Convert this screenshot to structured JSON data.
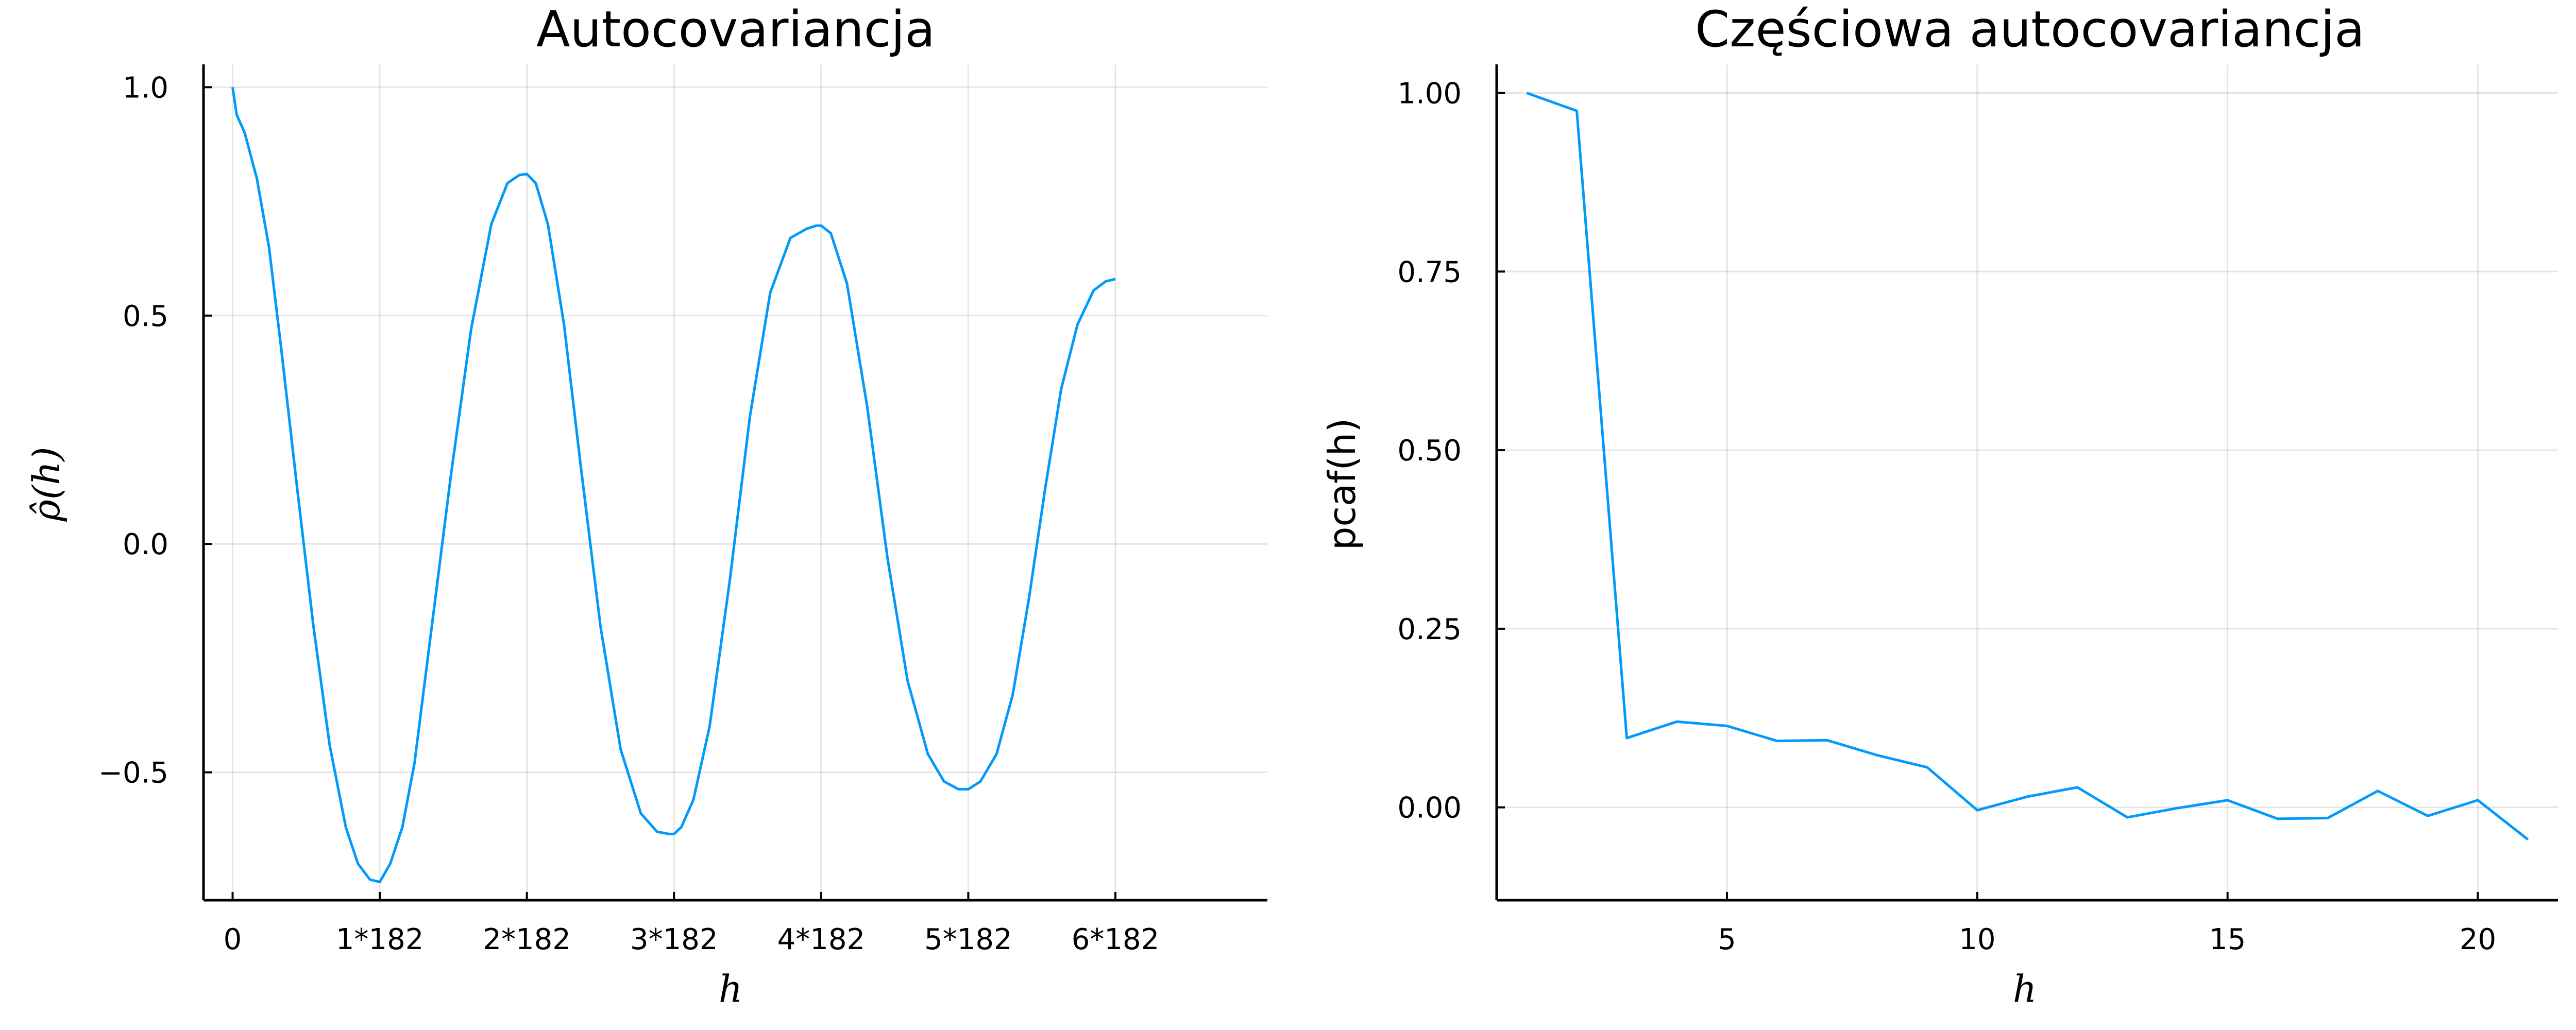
{
  "colors": {
    "series": "#009AFA"
  },
  "chart_data": [
    {
      "type": "line",
      "title": "Autocovariancja",
      "xlabel": "h",
      "ylabel": "ρ̂(h)",
      "xlim": [
        -36,
        1280
      ],
      "ylim": [
        -0.78,
        1.05
      ],
      "xticks": [
        {
          "value": 0,
          "label": "0"
        },
        {
          "value": 182,
          "label": "1*182"
        },
        {
          "value": 364,
          "label": "2*182"
        },
        {
          "value": 546,
          "label": "3*182"
        },
        {
          "value": 728,
          "label": "4*182"
        },
        {
          "value": 910,
          "label": "5*182"
        },
        {
          "value": 1092,
          "label": "6*182"
        }
      ],
      "yticks": [
        {
          "value": 1.0,
          "label": "1.0"
        },
        {
          "value": 0.5,
          "label": "0.5"
        },
        {
          "value": 0.0,
          "label": "0.0"
        },
        {
          "value": -0.5,
          "label": "−0.5"
        }
      ],
      "grid": true,
      "legend": "none",
      "series": [
        {
          "x": [
            0,
            5,
            15,
            30,
            45,
            60,
            80,
            100,
            120,
            140,
            155,
            170,
            182,
            195,
            210,
            225,
            245,
            270,
            295,
            320,
            340,
            355,
            364,
            375,
            390,
            410,
            430,
            455,
            480,
            505,
            525,
            540,
            546,
            555,
            570,
            590,
            615,
            640,
            665,
            690,
            710,
            722,
            728,
            740,
            760,
            785,
            810,
            835,
            860,
            880,
            898,
            910,
            925,
            945,
            965,
            985,
            1005,
            1025,
            1045,
            1065,
            1080,
            1092
          ],
          "y": [
            1.0,
            0.94,
            0.9,
            0.8,
            0.65,
            0.43,
            0.12,
            -0.18,
            -0.44,
            -0.62,
            -0.7,
            -0.735,
            -0.74,
            -0.7,
            -0.62,
            -0.48,
            -0.2,
            0.15,
            0.47,
            0.7,
            0.79,
            0.808,
            0.81,
            0.79,
            0.7,
            0.48,
            0.18,
            -0.18,
            -0.45,
            -0.59,
            -0.63,
            -0.635,
            -0.635,
            -0.62,
            -0.56,
            -0.4,
            -0.08,
            0.28,
            0.55,
            0.67,
            0.69,
            0.697,
            0.697,
            0.68,
            0.57,
            0.3,
            -0.03,
            -0.3,
            -0.46,
            -0.52,
            -0.537,
            -0.537,
            -0.52,
            -0.46,
            -0.33,
            -0.12,
            0.12,
            0.34,
            0.48,
            0.555,
            0.575,
            0.58
          ]
        }
      ]
    },
    {
      "type": "line",
      "title": "Częściowa autocovariancja",
      "xlabel": "h",
      "ylabel": "pcaf(h)",
      "xlim": [
        0.4,
        21.6
      ],
      "ylim": [
        -0.13,
        1.04
      ],
      "xticks": [
        {
          "value": 5,
          "label": "5"
        },
        {
          "value": 10,
          "label": "10"
        },
        {
          "value": 15,
          "label": "15"
        },
        {
          "value": 20,
          "label": "20"
        }
      ],
      "yticks": [
        {
          "value": 1.0,
          "label": "1.00"
        },
        {
          "value": 0.75,
          "label": "0.75"
        },
        {
          "value": 0.5,
          "label": "0.50"
        },
        {
          "value": 0.25,
          "label": "0.25"
        },
        {
          "value": 0.0,
          "label": "0.00"
        }
      ],
      "grid": true,
      "legend": "none",
      "series": [
        {
          "x": [
            1,
            2,
            3,
            4,
            5,
            6,
            7,
            8,
            9,
            10,
            11,
            12,
            13,
            14,
            15,
            16,
            17,
            18,
            19,
            20,
            21
          ],
          "y": [
            1.0,
            0.975,
            0.097,
            0.12,
            0.114,
            0.093,
            0.094,
            0.073,
            0.056,
            -0.004,
            0.015,
            0.028,
            -0.014,
            -0.001,
            0.01,
            -0.016,
            -0.015,
            0.023,
            -0.012,
            0.01,
            -0.045
          ]
        }
      ]
    }
  ]
}
